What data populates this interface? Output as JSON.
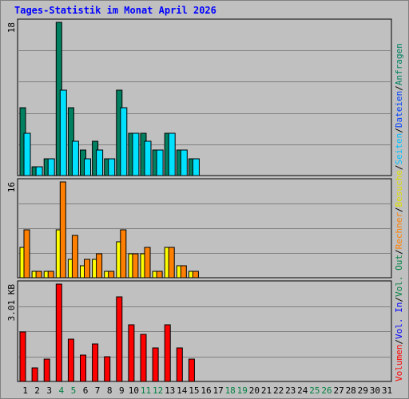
{
  "title": "Tages-Statistik im Monat April 2026",
  "colors": {
    "anfragen": "#008060",
    "dateien": "#00e0ff",
    "seiten": "#00c0ff",
    "besuche": "#ffff00",
    "rechner": "#ff8000",
    "volumen": "#ff0000",
    "vol_in": "#0000ff",
    "vol_out": "#008040",
    "weekend": "#008040",
    "grid": "#808080"
  },
  "legend": {
    "top": [
      {
        "text": "Anfragen",
        "color": "#008060"
      },
      {
        "text": "/",
        "color": "#000000"
      },
      {
        "text": "Dateien",
        "color": "#0040ff"
      },
      {
        "text": "/",
        "color": "#000000"
      },
      {
        "text": "Seiten",
        "color": "#00c0ff"
      },
      {
        "text": "/",
        "color": "#000000"
      },
      {
        "text": "Besuche",
        "color": "#e0e000"
      },
      {
        "text": "/",
        "color": "#000000"
      },
      {
        "text": "Rechner",
        "color": "#ff8000"
      },
      {
        "text": "/",
        "color": "#000000"
      },
      {
        "text": "Vol. Out",
        "color": "#008040"
      },
      {
        "text": "/",
        "color": "#000000"
      },
      {
        "text": "Vol. In",
        "color": "#0000ff"
      },
      {
        "text": "/",
        "color": "#000000"
      },
      {
        "text": "Volumen",
        "color": "#ff0000"
      }
    ]
  },
  "chart_data": [
    {
      "type": "bar",
      "panel": "hits",
      "ymax_label": "18",
      "ylim": [
        0,
        18
      ],
      "x": [
        1,
        2,
        3,
        4,
        5,
        6,
        7,
        8,
        9,
        10,
        11,
        12,
        13,
        14,
        15,
        16,
        17,
        18,
        19,
        20,
        21,
        22,
        23,
        24,
        25,
        26,
        27,
        28,
        29,
        30,
        31
      ],
      "series": [
        {
          "name": "Anfragen",
          "values": [
            8,
            1,
            2,
            18,
            8,
            3,
            4,
            2,
            10,
            5,
            5,
            3,
            5,
            3,
            2,
            0,
            0,
            0,
            0,
            0,
            0,
            0,
            0,
            0,
            0,
            0,
            0,
            0,
            0,
            0,
            0
          ]
        },
        {
          "name": "Dateien",
          "values": [
            5,
            1,
            2,
            10,
            4,
            2,
            3,
            2,
            8,
            5,
            4,
            3,
            5,
            3,
            2,
            0,
            0,
            0,
            0,
            0,
            0,
            0,
            0,
            0,
            0,
            0,
            0,
            0,
            0,
            0,
            0
          ]
        }
      ]
    },
    {
      "type": "bar",
      "panel": "visits",
      "ymax_label": "16",
      "ylim": [
        0,
        16
      ],
      "series": [
        {
          "name": "Besuche",
          "values": [
            5,
            1,
            1,
            8,
            3,
            2,
            3,
            1,
            6,
            4,
            4,
            1,
            5,
            2,
            1,
            0,
            0,
            0,
            0,
            0,
            0,
            0,
            0,
            0,
            0,
            0,
            0,
            0,
            0,
            0,
            0
          ]
        },
        {
          "name": "Rechner",
          "values": [
            8,
            1,
            1,
            16,
            7,
            3,
            4,
            1,
            8,
            4,
            5,
            1,
            5,
            2,
            1,
            0,
            0,
            0,
            0,
            0,
            0,
            0,
            0,
            0,
            0,
            0,
            0,
            0,
            0,
            0,
            0
          ]
        }
      ]
    },
    {
      "type": "bar",
      "panel": "volume",
      "ymax_label": "3.01 KB",
      "ylim": [
        0,
        3.01
      ],
      "series": [
        {
          "name": "Volumen",
          "values": [
            1.53,
            0.43,
            0.68,
            3.01,
            1.3,
            0.81,
            1.16,
            0.77,
            2.61,
            1.75,
            1.45,
            1.04,
            1.74,
            1.04,
            0.68,
            0,
            0,
            0,
            0,
            0,
            0,
            0,
            0,
            0,
            0,
            0,
            0,
            0,
            0,
            0,
            0
          ]
        }
      ]
    }
  ],
  "weekend_days": [
    4,
    5,
    11,
    12,
    18,
    19,
    25,
    26
  ]
}
